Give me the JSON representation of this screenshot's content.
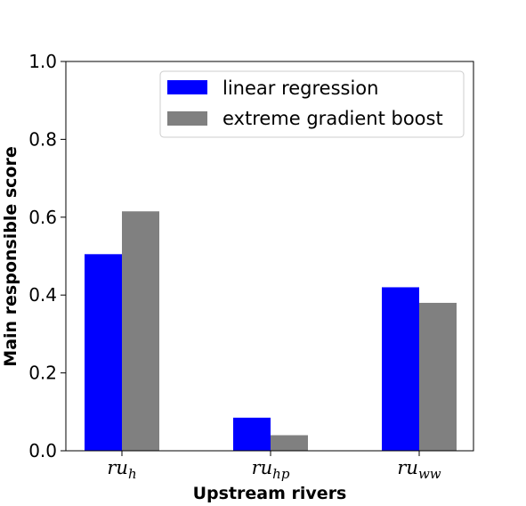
{
  "chart_data": {
    "type": "bar",
    "categories": [
      {
        "base": "ru",
        "sub": "h"
      },
      {
        "base": "ru",
        "sub": "hp"
      },
      {
        "base": "ru",
        "sub": "ww"
      }
    ],
    "series": [
      {
        "name": "linear regression",
        "color": "#0000ff",
        "values": [
          0.505,
          0.085,
          0.42
        ]
      },
      {
        "name": "extreme gradient boost",
        "color": "#808080",
        "values": [
          0.615,
          0.04,
          0.38
        ]
      }
    ],
    "xlabel": "Upstream rivers",
    "ylabel": "Main responsible score",
    "ylim": [
      0,
      1.0
    ],
    "yticks": [
      "0.0",
      "0.2",
      "0.4",
      "0.6",
      "0.8",
      "1.0"
    ],
    "grid": false,
    "legend_position": "top-right"
  }
}
